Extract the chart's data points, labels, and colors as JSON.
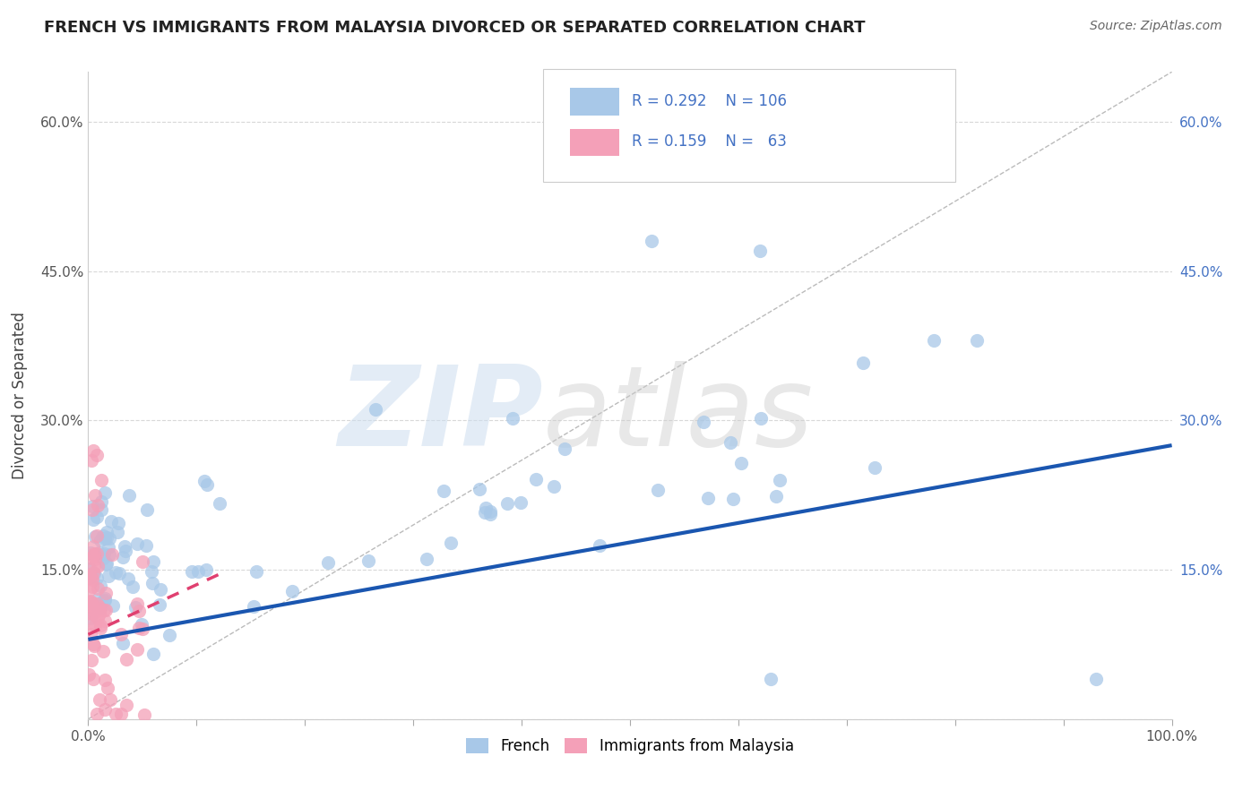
{
  "title": "FRENCH VS IMMIGRANTS FROM MALAYSIA DIVORCED OR SEPARATED CORRELATION CHART",
  "source": "Source: ZipAtlas.com",
  "ylabel": "Divorced or Separated",
  "x_min": 0.0,
  "x_max": 1.0,
  "y_min": 0.0,
  "y_max": 0.65,
  "x_ticks": [
    0.0,
    0.1,
    0.2,
    0.3,
    0.4,
    0.5,
    0.6,
    0.7,
    0.8,
    0.9,
    1.0
  ],
  "y_ticks": [
    0.0,
    0.15,
    0.3,
    0.45,
    0.6
  ],
  "x_tick_labels": [
    "0.0%",
    "",
    "",
    "",
    "",
    "",
    "",
    "",
    "",
    "",
    "100.0%"
  ],
  "y_tick_labels": [
    "",
    "15.0%",
    "30.0%",
    "45.0%",
    "60.0%"
  ],
  "legend_bottom": [
    "French",
    "Immigrants from Malaysia"
  ],
  "blue_scatter_color": "#a8c8e8",
  "pink_scatter_color": "#f4a0b8",
  "blue_line_color": "#1a56b0",
  "pink_line_color": "#e04070",
  "dashed_line_color": "#bbbbbb",
  "blue_R": 0.292,
  "blue_N": 106,
  "pink_R": 0.159,
  "pink_N": 63,
  "blue_line_x": [
    0.0,
    1.0
  ],
  "blue_line_y": [
    0.08,
    0.275
  ],
  "pink_line_x": [
    0.0,
    0.12
  ],
  "pink_line_y": [
    0.085,
    0.145
  ],
  "background_color": "#ffffff",
  "grid_color": "#d8d8d8",
  "right_tick_color": "#4472c4",
  "title_color": "#222222",
  "source_color": "#666666"
}
